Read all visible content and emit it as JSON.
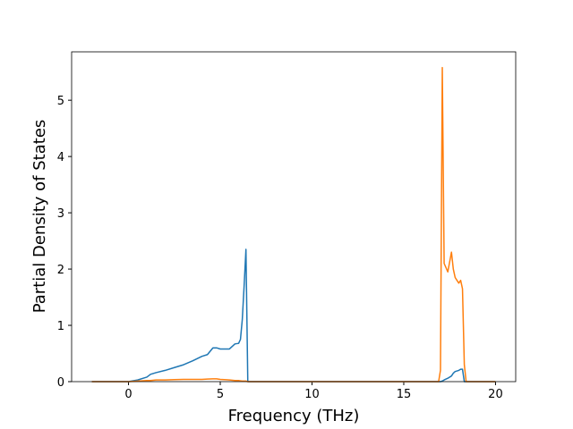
{
  "chart_data": {
    "type": "line",
    "x_label": "Frequency (THz)",
    "y_label": "Partial Density of States",
    "x": [
      -2,
      0,
      0.5,
      1,
      1.2,
      1.5,
      2,
      2.5,
      3,
      3.5,
      4,
      4.3,
      4.6,
      4.8,
      5,
      5.5,
      5.8,
      6,
      6.1,
      6.2,
      6.3,
      6.4,
      6.5,
      10,
      16.9,
      17.0,
      17.1,
      17.2,
      17.4,
      17.6,
      17.7,
      17.8,
      18.0,
      18.1,
      18.2,
      18.3,
      18.4,
      20
    ],
    "series": [
      {
        "color": "#1f77b4",
        "values": [
          0,
          0,
          0.03,
          0.08,
          0.13,
          0.16,
          0.2,
          0.25,
          0.3,
          0.37,
          0.45,
          0.48,
          0.6,
          0.6,
          0.58,
          0.58,
          0.67,
          0.68,
          0.75,
          1.1,
          1.7,
          2.35,
          0,
          0,
          0,
          0,
          0.01,
          0.03,
          0.06,
          0.1,
          0.15,
          0.18,
          0.2,
          0.22,
          0.22,
          0,
          0,
          0
        ]
      },
      {
        "color": "#ff7f0e",
        "values": [
          0,
          0,
          0.01,
          0.02,
          0.02,
          0.03,
          0.03,
          0.035,
          0.04,
          0.04,
          0.04,
          0.045,
          0.05,
          0.05,
          0.04,
          0.03,
          0.02,
          0.02,
          0.015,
          0.01,
          0.01,
          0.01,
          0,
          0,
          0,
          0.2,
          5.58,
          2.1,
          1.95,
          2.3,
          2.0,
          1.85,
          1.75,
          1.8,
          1.65,
          0.3,
          0,
          0
        ]
      }
    ],
    "xlim": [
      -3.1,
      21.1
    ],
    "ylim": [
      0,
      5.86
    ],
    "xticks": [
      0,
      5,
      10,
      15,
      20
    ],
    "yticks": [
      0,
      1,
      2,
      3,
      4,
      5
    ]
  }
}
